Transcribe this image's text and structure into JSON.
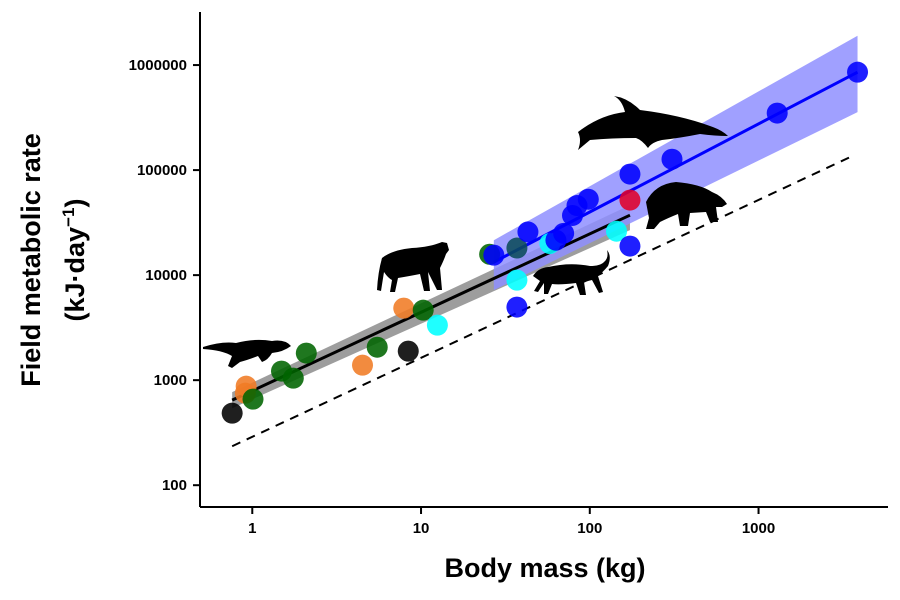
{
  "chart_data": {
    "type": "scatter",
    "xlabel": "Body mass (kg)",
    "ylabel_line1": "Field metabolic rate",
    "ylabel_line2": "(kJ·day",
    "ylabel_sup": "−1",
    "ylabel_close": ")",
    "xscale": "log",
    "yscale": "log",
    "xlim": [
      0.49,
      5850
    ],
    "ylim": [
      62,
      3200000
    ],
    "grid": false,
    "legend": "none",
    "xticks": [
      {
        "value": 1,
        "label": "1"
      },
      {
        "value": 10,
        "label": "10"
      },
      {
        "value": 100,
        "label": "100"
      },
      {
        "value": 1000,
        "label": "1000"
      }
    ],
    "yticks": [
      {
        "value": 100,
        "label": "100"
      },
      {
        "value": 1000,
        "label": "1000"
      },
      {
        "value": 10000,
        "label": "10000"
      },
      {
        "value": 100000,
        "label": "100000"
      },
      {
        "value": 1000000,
        "label": "1000000"
      }
    ],
    "colors": {
      "black": "#000000",
      "orange": "#f07b24",
      "green": "#006400",
      "cyan": "#00ffff",
      "blue": "#0000ff",
      "red": "#e0002a",
      "teal": "#0a4a5a",
      "blue_band": "#8f8fff",
      "gray_band": "#8c8c8c"
    },
    "points": [
      {
        "x": 0.76,
        "y": 485,
        "color": "black"
      },
      {
        "x": 8.4,
        "y": 1890,
        "color": "black"
      },
      {
        "x": 0.92,
        "y": 877,
        "color": "orange"
      },
      {
        "x": 0.91,
        "y": 752,
        "color": "orange"
      },
      {
        "x": 4.5,
        "y": 1390,
        "color": "orange"
      },
      {
        "x": 7.9,
        "y": 4850,
        "color": "orange"
      },
      {
        "x": 1.01,
        "y": 660,
        "color": "green"
      },
      {
        "x": 1.49,
        "y": 1220,
        "color": "green"
      },
      {
        "x": 1.75,
        "y": 1045,
        "color": "green"
      },
      {
        "x": 2.09,
        "y": 1810,
        "color": "green"
      },
      {
        "x": 5.5,
        "y": 2060,
        "color": "green"
      },
      {
        "x": 10.3,
        "y": 4640,
        "color": "green"
      },
      {
        "x": 25.5,
        "y": 15800,
        "color": "green"
      },
      {
        "x": 12.5,
        "y": 3340,
        "color": "cyan"
      },
      {
        "x": 37,
        "y": 8960,
        "color": "cyan"
      },
      {
        "x": 58,
        "y": 20000,
        "color": "cyan"
      },
      {
        "x": 144,
        "y": 26200,
        "color": "cyan"
      },
      {
        "x": 37,
        "y": 18100,
        "color": "teal"
      },
      {
        "x": 173,
        "y": 51800,
        "color": "red"
      },
      {
        "x": 27,
        "y": 15500,
        "color": "blue"
      },
      {
        "x": 37,
        "y": 4960,
        "color": "blue"
      },
      {
        "x": 43,
        "y": 25800,
        "color": "blue"
      },
      {
        "x": 63,
        "y": 21500,
        "color": "blue"
      },
      {
        "x": 70,
        "y": 25000,
        "color": "blue"
      },
      {
        "x": 79,
        "y": 37000,
        "color": "blue"
      },
      {
        "x": 84,
        "y": 46000,
        "color": "blue"
      },
      {
        "x": 98,
        "y": 52800,
        "color": "blue"
      },
      {
        "x": 173,
        "y": 91600,
        "color": "blue"
      },
      {
        "x": 173,
        "y": 18900,
        "color": "blue"
      },
      {
        "x": 307,
        "y": 127000,
        "color": "blue"
      },
      {
        "x": 1290,
        "y": 349000,
        "color": "blue"
      },
      {
        "x": 3860,
        "y": 856000,
        "color": "blue"
      }
    ],
    "fits": [
      {
        "color": "black",
        "x": [
          0.76,
          173
        ],
        "y": [
          645,
          37200
        ],
        "band_lower": [
          540,
          26800
        ],
        "band_upper": [
          770,
          46400
        ],
        "band_color": "gray_band"
      },
      {
        "color": "blue",
        "x": [
          27,
          3860
        ],
        "y": [
          13300,
          855000
        ],
        "band_lower": [
          7200,
          356000
        ],
        "band_upper": [
          21500,
          1900000
        ],
        "band_color": "blue_band"
      }
    ],
    "reference_line": {
      "style": "dashed",
      "x": [
        0.76,
        3700
      ],
      "y": [
        235,
        139000
      ]
    },
    "silhouettes": [
      "otter",
      "wolf",
      "leopard",
      "bear",
      "dolphin"
    ]
  }
}
